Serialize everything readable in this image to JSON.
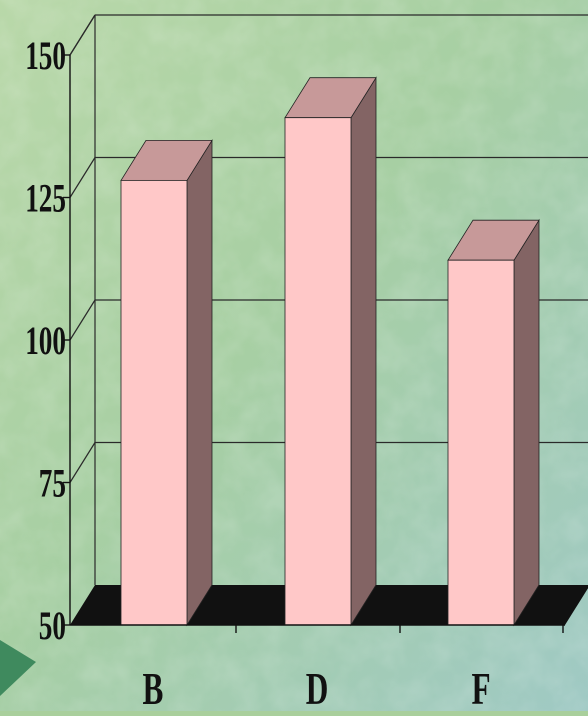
{
  "chart_data": {
    "type": "bar",
    "style": "3d",
    "categories": [
      "B",
      "D",
      "F"
    ],
    "values": [
      128,
      139,
      114
    ],
    "ylim": [
      50,
      150
    ],
    "yticks": [
      50,
      75,
      100,
      125,
      150
    ],
    "grid": true,
    "title": "",
    "xlabel": "",
    "ylabel": ""
  },
  "colors": {
    "background": "#a9cf9c",
    "bar_front": "#ffc8c8",
    "bar_top": "#c79999",
    "bar_side": "#836464",
    "floor": "#111111",
    "grid": "#2a2a2a",
    "arrow": "#3f8a5e"
  },
  "decor": {
    "arrow_icon": "triangle-arrow-right"
  }
}
